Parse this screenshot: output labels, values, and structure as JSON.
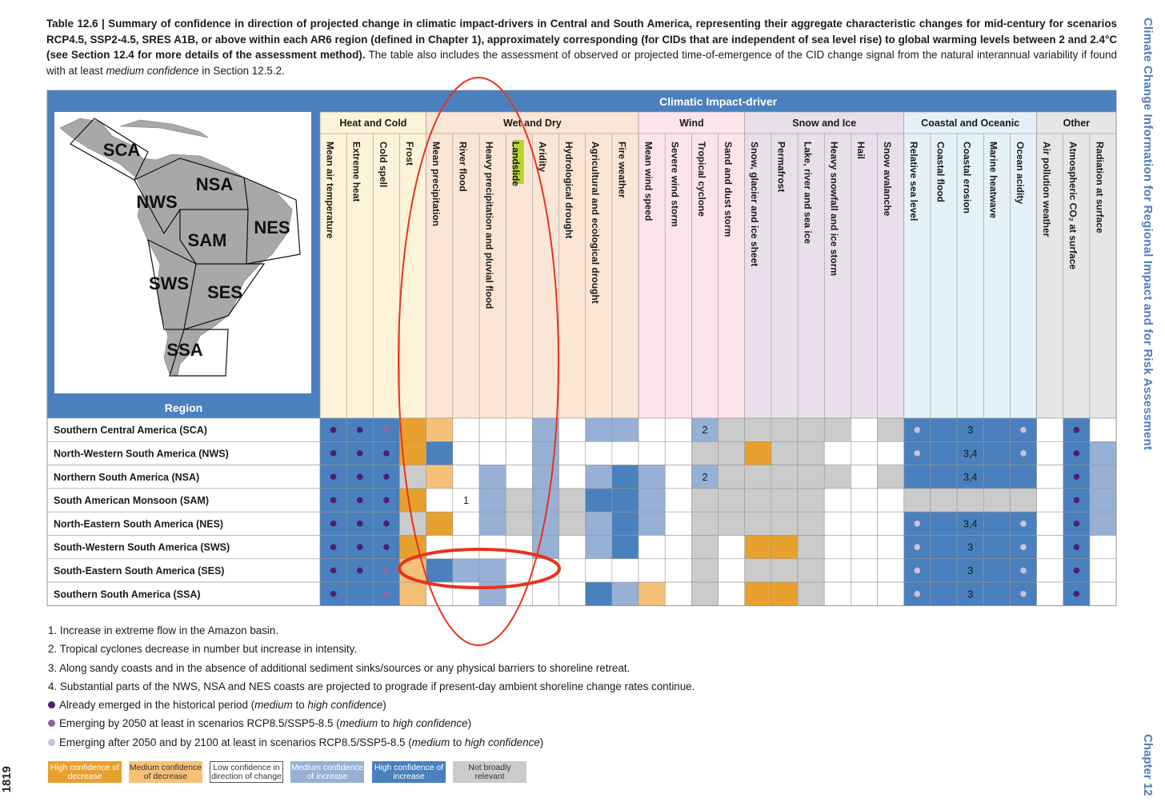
{
  "caption": {
    "bold": "Table 12.6 | Summary of confidence in direction of projected change in climatic impact-drivers in Central and South America, representing their aggregate characteristic changes for mid-century for scenarios RCP4.5, SSP2-4.5, SRES A1B, or above within each AR6 region (defined in Chapter 1), approximately corresponding (for CIDs that are independent of sea level rise) to global warming levels between 2 and 2.4°C (see Section 12.4 for more details of the assessment method).",
    "regular_1": " The table also includes the assessment of observed or projected time-of-emergence of the CID change signal from the natural interannual variability if found with at least ",
    "italic": "medium confidence",
    "regular_2": " in Section 12.5.2."
  },
  "sidebar_title": "Climate Change Information for Regional Impact and for Risk Assessment",
  "chapter_label": "Chapter 12",
  "page_number": "1819",
  "table": {
    "super_header": "Climatic Impact-driver",
    "region_header": "Region",
    "map_labels": [
      "SCA",
      "NWS",
      "NSA",
      "NES",
      "SAM",
      "SWS",
      "SES",
      "SSA"
    ],
    "groups": [
      {
        "name": "Heat and Cold",
        "span": 4,
        "color": "#fdf3d8"
      },
      {
        "name": "Wet and Dry",
        "span": 8,
        "color": "#fbe6d6"
      },
      {
        "name": "Wind",
        "span": 4,
        "color": "#fbe4ea"
      },
      {
        "name": "Snow and Ice",
        "span": 6,
        "color": "#e8dfea"
      },
      {
        "name": "Coastal and Oceanic",
        "span": 5,
        "color": "#e4f1f8"
      },
      {
        "name": "Other",
        "span": 3,
        "color": "#e6e6e6"
      }
    ],
    "columns": [
      "Mean air temperature",
      "Extreme heat",
      "Cold spell",
      "Frost",
      "Mean precipitation",
      "River flood",
      "Heavy precipitation and pluvial flood",
      "Landslide",
      "Aridity",
      "Hydrological drought",
      "Agricultural and ecological drought",
      "Fire weather",
      "Mean wind speed",
      "Severe wind storm",
      "Tropical cyclone",
      "Sand and dust storm",
      "Snow, glacier and ice sheet",
      "Permafrost",
      "Lake, river and sea ice",
      "Heavy snowfall and ice storm",
      "Hail",
      "Snow avalanche",
      "Relative sea level",
      "Coastal flood",
      "Coastal erosion",
      "Marine heatwave",
      "Ocean acidity",
      "Air pollution weather",
      "Atmospheric CO₂ at surface",
      "Radiation at surface"
    ],
    "highlighted_column": 7,
    "rows": [
      {
        "region": "Southern Central America (SCA)",
        "cells": [
          "HI",
          "HI",
          "HI",
          "HD",
          "MD",
          "L",
          "L",
          "L",
          "MI",
          "L",
          "MI",
          "MI",
          "L",
          "L",
          "MI",
          "N",
          "N",
          "N",
          "N",
          "N",
          "L",
          "N",
          "HI",
          "HI",
          "HI",
          "HI",
          "HI",
          "L",
          "HI",
          "L"
        ],
        "dots": {
          "0": "d",
          "1": "d",
          "2": "m",
          "22": "l",
          "26": "l",
          "28": "d"
        },
        "labels": {
          "14": "2",
          "24": "3"
        }
      },
      {
        "region": "North-Western South America (NWS)",
        "cells": [
          "HI",
          "HI",
          "HI",
          "HD",
          "HI",
          "L",
          "L",
          "L",
          "MI",
          "L",
          "L",
          "L",
          "L",
          "L",
          "N",
          "N",
          "HD",
          "N",
          "N",
          "L",
          "L",
          "L",
          "HI",
          "HI",
          "HI",
          "HI",
          "HI",
          "L",
          "HI",
          "MI"
        ],
        "dots": {
          "0": "d",
          "1": "d",
          "2": "d",
          "22": "l",
          "26": "l",
          "28": "d"
        },
        "labels": {
          "24": "3,4"
        }
      },
      {
        "region": "Northern South America (NSA)",
        "cells": [
          "HI",
          "HI",
          "HI",
          "N",
          "MD",
          "L",
          "MI",
          "L",
          "MI",
          "L",
          "MI",
          "HI",
          "MI",
          "L",
          "MI",
          "N",
          "N",
          "N",
          "N",
          "N",
          "L",
          "N",
          "HI",
          "HI",
          "HI",
          "HI",
          "HI",
          "L",
          "HI",
          "MI"
        ],
        "dots": {
          "0": "d",
          "1": "d",
          "2": "d",
          "28": "d"
        },
        "labels": {
          "14": "2",
          "24": "3,4"
        }
      },
      {
        "region": "South American Monsoon (SAM)",
        "cells": [
          "HI",
          "HI",
          "HI",
          "HD",
          "L",
          "L",
          "MI",
          "N",
          "MI",
          "N",
          "HI",
          "HI",
          "MI",
          "L",
          "N",
          "N",
          "N",
          "N",
          "N",
          "L",
          "L",
          "L",
          "N",
          "N",
          "N",
          "N",
          "N",
          "L",
          "HI",
          "MI"
        ],
        "dots": {
          "0": "d",
          "1": "d",
          "2": "d",
          "28": "d"
        },
        "labels": {
          "5": "1"
        }
      },
      {
        "region": "North-Eastern South America (NES)",
        "cells": [
          "HI",
          "HI",
          "HI",
          "N",
          "HD",
          "L",
          "MI",
          "N",
          "MI",
          "N",
          "MI",
          "HI",
          "MI",
          "L",
          "N",
          "N",
          "N",
          "N",
          "N",
          "L",
          "L",
          "L",
          "HI",
          "HI",
          "HI",
          "HI",
          "HI",
          "L",
          "HI",
          "MI"
        ],
        "dots": {
          "0": "d",
          "1": "d",
          "2": "d",
          "22": "l",
          "26": "l",
          "28": "d"
        },
        "labels": {
          "24": "3,4"
        }
      },
      {
        "region": "South-Western South America (SWS)",
        "cells": [
          "HI",
          "HI",
          "HI",
          "HD",
          "L",
          "L",
          "L",
          "L",
          "MI",
          "L",
          "MI",
          "HI",
          "L",
          "L",
          "N",
          "L",
          "HD",
          "HD",
          "N",
          "L",
          "L",
          "L",
          "HI",
          "HI",
          "HI",
          "HI",
          "HI",
          "L",
          "HI",
          "L"
        ],
        "dots": {
          "0": "d",
          "1": "d",
          "2": "d",
          "22": "l",
          "26": "l",
          "28": "d"
        },
        "labels": {
          "24": "3"
        }
      },
      {
        "region": "South-Eastern South America (SES)",
        "cells": [
          "HI",
          "HI",
          "HI",
          "MD",
          "HI",
          "MI",
          "MI",
          "L",
          "L",
          "L",
          "L",
          "L",
          "L",
          "L",
          "N",
          "L",
          "N",
          "N",
          "N",
          "L",
          "L",
          "L",
          "HI",
          "HI",
          "HI",
          "HI",
          "HI",
          "L",
          "HI",
          "L"
        ],
        "dots": {
          "0": "d",
          "1": "d",
          "2": "m",
          "22": "l",
          "26": "l",
          "28": "d"
        },
        "labels": {
          "24": "3"
        }
      },
      {
        "region": "Southern South America (SSA)",
        "cells": [
          "HI",
          "HI",
          "HI",
          "MD",
          "L",
          "L",
          "MI",
          "L",
          "L",
          "L",
          "HI",
          "MI",
          "MD",
          "L",
          "N",
          "L",
          "HD",
          "HD",
          "N",
          "L",
          "L",
          "L",
          "HI",
          "HI",
          "HI",
          "HI",
          "HI",
          "L",
          "HI",
          "L"
        ],
        "dots": {
          "0": "d",
          "2": "m",
          "22": "l",
          "26": "l",
          "28": "d"
        },
        "labels": {
          "24": "3"
        }
      }
    ]
  },
  "footnotes": [
    "1. Increase in extreme flow in the Amazon basin.",
    "2. Tropical cyclones decrease in number but increase in intensity.",
    "3. Along sandy coasts and in the absence of additional sediment sinks/sources or any physical barriers to shoreline retreat.",
    "4. Substantial parts of the NWS, NSA and NES coasts are projected to prograde if present-day ambient shoreline change rates continue."
  ],
  "emergence": [
    {
      "pre": "Already emerged in the historical period (",
      "it1": "medium",
      "mid": " to ",
      "it2": "high confidence",
      "post": ")",
      "color": "#4b2070"
    },
    {
      "pre": "Emerging by 2050 at least in scenarios RCP8.5/SSP5-8.5 (",
      "it1": "medium",
      "mid": " to ",
      "it2": "high confidence",
      "post": ")",
      "color": "#8a6aa6"
    },
    {
      "pre": "Emerging after 2050 and by 2100 at least in scenarios RCP8.5/SSP5-8.5 (",
      "it1": "medium",
      "mid": " to ",
      "it2": "high confidence",
      "post": ")",
      "color": "#cdbfdb"
    }
  ],
  "legend": [
    {
      "label": "High confidence of decrease",
      "bg": "#e8a02e",
      "fg": "#ffffff"
    },
    {
      "label": "Medium confidence of decrease",
      "bg": "#f6c177",
      "fg": "#333333"
    },
    {
      "label": "Low confidence in direction of change",
      "bg": "#ffffff",
      "fg": "#333333"
    },
    {
      "label": "Medium confidence of increase",
      "bg": "#96b0d6",
      "fg": "#ffffff"
    },
    {
      "label": "High confidence of increase",
      "bg": "#4a80bd",
      "fg": "#ffffff"
    },
    {
      "label": "Not broadly relevant",
      "bg": "#cbcbcb",
      "fg": "#333333"
    }
  ],
  "cell_colors": {
    "HD": "#e8a02e",
    "MD": "#f6c177",
    "L": "#ffffff",
    "MI": "#96b0d6",
    "HI": "#4a80bd",
    "N": "#cbcbcb"
  },
  "dot_colors": {
    "d": "#4b2070",
    "m": "#8a6aa6",
    "l": "#cdbfdb"
  },
  "header_blue": "#4a80bd",
  "annotation_color": "#e8331c"
}
